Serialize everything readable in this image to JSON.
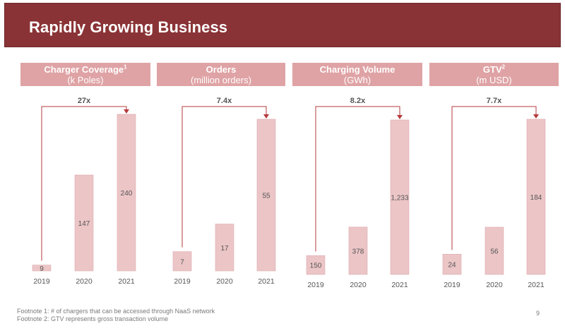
{
  "slide": {
    "title": "Rapidly Growing Business",
    "footnotes": [
      "Footnote 1: # of chargers that can be accessed through NaaS network",
      "Footnote 2: GTV represents gross transaction volume"
    ],
    "page_number": "9"
  },
  "colors": {
    "banner": "#8a3336",
    "header_fill": "#dfa3a5",
    "bar_fill": "#ecc5c7",
    "bar_stroke": "#dcaaad",
    "arrow": "#b5393c",
    "text": "#555555"
  },
  "chart_data": [
    {
      "type": "bar",
      "title": "Charger Coverage",
      "title_sup": "1",
      "subtitle": "(k Poles)",
      "growth": "27x",
      "categories": [
        "2019",
        "2020",
        "2021"
      ],
      "values": [
        9,
        147,
        240
      ],
      "value_labels": [
        "9",
        "147",
        "240"
      ]
    },
    {
      "type": "bar",
      "title": "Orders",
      "title_sup": "",
      "subtitle": "(million orders)",
      "growth": "7.4x",
      "categories": [
        "2019",
        "2020",
        "2021"
      ],
      "values": [
        7,
        17,
        55
      ],
      "value_labels": [
        "7",
        "17",
        "55"
      ]
    },
    {
      "type": "bar",
      "title": "Charging Volume",
      "title_sup": "",
      "subtitle": "(GWh)",
      "growth": "8.2x",
      "categories": [
        "2019",
        "2020",
        "2021"
      ],
      "values": [
        150,
        378,
        1233
      ],
      "value_labels": [
        "150",
        "378",
        "1,233"
      ]
    },
    {
      "type": "bar",
      "title": "GTV",
      "title_sup": "2",
      "subtitle": "(m USD)",
      "growth": "7.7x",
      "categories": [
        "2019",
        "2020",
        "2021"
      ],
      "values": [
        24,
        56,
        184
      ],
      "value_labels": [
        "24",
        "56",
        "184"
      ]
    }
  ]
}
